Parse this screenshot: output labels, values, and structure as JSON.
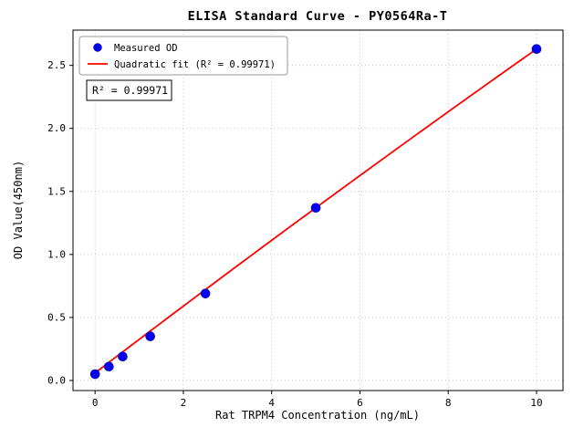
{
  "chart_data": {
    "type": "scatter",
    "title": "ELISA Standard Curve - PY0564Ra-T",
    "xlabel": "Rat TRPM4 Concentration (ng/mL)",
    "ylabel": "OD Value(450nm)",
    "xlim": [
      -0.5,
      10.6
    ],
    "ylim": [
      -0.08,
      2.78
    ],
    "xticks": [
      0,
      2,
      4,
      6,
      8,
      10
    ],
    "xtick_labels": [
      "0",
      "2",
      "4",
      "6",
      "8",
      "10"
    ],
    "yticks": [
      0.0,
      0.5,
      1.0,
      1.5,
      2.0,
      2.5
    ],
    "ytick_labels": [
      "0.0",
      "0.5",
      "1.0",
      "1.5",
      "2.0",
      "2.5"
    ],
    "grid": true,
    "grid_style": "dotted",
    "colors": {
      "points": "#0000ee",
      "fit_line": "#ff0000",
      "grid": "#b8b8b8",
      "frame": "#000000"
    },
    "legend": {
      "position": "upper-left",
      "entries": [
        {
          "label": "Measured OD",
          "marker": "dot",
          "color": "#0000ee"
        },
        {
          "label": "Quadratic fit (R² = 0.99971)",
          "marker": "line",
          "color": "#ff0000"
        }
      ]
    },
    "annotation": "R² = 0.99971",
    "series": [
      {
        "name": "Measured OD",
        "type": "scatter",
        "color": "#0000ee",
        "points": [
          [
            0,
            0.05
          ],
          [
            0.3125,
            0.11
          ],
          [
            0.625,
            0.19
          ],
          [
            1.25,
            0.35
          ],
          [
            2.5,
            0.69
          ],
          [
            5,
            1.37
          ],
          [
            10,
            2.63
          ]
        ]
      },
      {
        "name": "Quadratic fit",
        "type": "line",
        "color": "#ff0000",
        "fit": {
          "a": -0.001,
          "b": 0.267,
          "c": 0.06
        },
        "x_range": [
          0,
          10
        ],
        "r_squared": 0.99971
      }
    ]
  }
}
